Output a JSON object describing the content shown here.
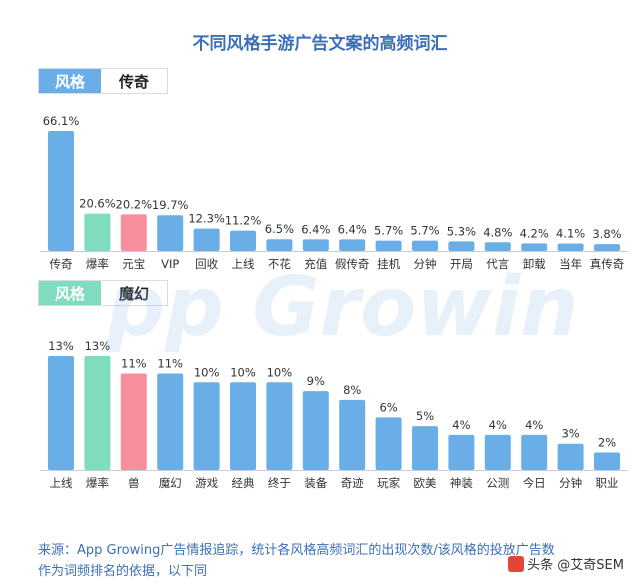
{
  "title": "不同风格手游广告文案的高频词汇",
  "watermark_text": "App Growing",
  "colors": {
    "title": "#3d6fb7",
    "bar_blue": "#6aaee8",
    "bar_green": "#7fdcbf",
    "bar_pink": "#f68e9e",
    "tag_blue": "#6aaee8",
    "tag_green": "#7fdcbf",
    "axis": "#c8cdd5",
    "label": "#333333"
  },
  "chart_data": [
    {
      "type": "bar",
      "style_key": "风格",
      "style_name": "传奇",
      "categories": [
        "传奇",
        "爆率",
        "元宝",
        "VIP",
        "回收",
        "上线",
        "不花",
        "充值",
        "假传奇",
        "挂机",
        "分钟",
        "开局",
        "代言",
        "卸载",
        "当年",
        "真传奇"
      ],
      "values": [
        66.1,
        20.6,
        20.2,
        19.7,
        12.3,
        11.2,
        6.5,
        6.4,
        6.4,
        5.7,
        5.7,
        5.3,
        4.8,
        4.2,
        4.1,
        3.8
      ],
      "value_labels": [
        "66.1%",
        "20.6%",
        "20.2%",
        "19.7%",
        "12.3%",
        "11.2%",
        "6.5%",
        "6.4%",
        "6.4%",
        "5.7%",
        "5.7%",
        "5.3%",
        "4.8%",
        "4.2%",
        "4.1%",
        "3.8%"
      ],
      "bar_colors": [
        "blue",
        "green",
        "pink",
        "blue",
        "blue",
        "blue",
        "blue",
        "blue",
        "blue",
        "blue",
        "blue",
        "blue",
        "blue",
        "blue",
        "blue",
        "blue"
      ],
      "unit": "%"
    },
    {
      "type": "bar",
      "style_key": "风格",
      "style_name": "魔幻",
      "categories": [
        "上线",
        "爆率",
        "兽",
        "魔幻",
        "游戏",
        "经典",
        "终于",
        "装备",
        "奇迹",
        "玩家",
        "欧美",
        "神装",
        "公测",
        "今日",
        "分钟",
        "职业"
      ],
      "values": [
        13,
        13,
        11,
        11,
        10,
        10,
        10,
        9,
        8,
        6,
        5,
        4,
        4,
        4,
        3,
        2
      ],
      "value_labels": [
        "13%",
        "13%",
        "11%",
        "11%",
        "10%",
        "10%",
        "10%",
        "9%",
        "8%",
        "6%",
        "5%",
        "4%",
        "4%",
        "4%",
        "3%",
        "2%"
      ],
      "bar_colors": [
        "blue",
        "green",
        "pink",
        "blue",
        "blue",
        "blue",
        "blue",
        "blue",
        "blue",
        "blue",
        "blue",
        "blue",
        "blue",
        "blue",
        "blue",
        "blue"
      ],
      "unit": "%"
    }
  ],
  "footer": {
    "source_text": "来源：App Growing广告情报追踪，统计各风格高频词汇的出现次数/该风格的投放广告数作为词频排名的依据，以下同"
  },
  "credit": {
    "text": "头条 @艾奇SEM"
  }
}
